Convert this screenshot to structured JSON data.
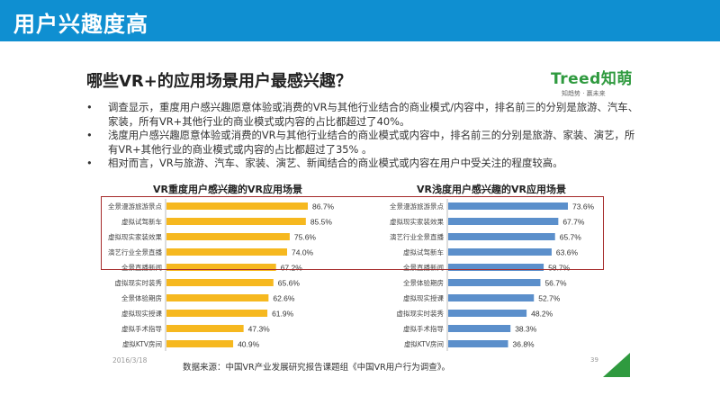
{
  "header": {
    "title": "用户兴趣度高"
  },
  "question": "哪些VR+的应用场景用户最感兴趣？",
  "logo": {
    "name": "Treed知萌",
    "tagline": "知趋势 · 赢未来"
  },
  "bullets": [
    "调查显示，重度用户感兴趣愿意体验或消费的VR与其他行业结合的商业模式/内容中，排名前三的分别是旅游、汽车、家装，所有VR+其他行业的商业模式或内容的占比都超过了40%。",
    "浅度用户感兴趣愿意体验或消费的VR与其他行业结合的商业模式或内容中，排名前三的分别是旅游、家装、演艺，所有VR+其他行业的商业模式或内容的占比都超过了35% 。",
    "相对而言，VR与旅游、汽车、家装、演艺、新闻结合的商业模式或内容在用户中受关注的程度较高。"
  ],
  "bullet_symbol": "•",
  "footer": {
    "date": "2016/3/18",
    "source": "数据来源：中国VR产业发展研究报告课题组《中国VR用户行为调查》。",
    "page": "39"
  },
  "chart_data": [
    {
      "type": "bar",
      "orientation": "horizontal",
      "title": "VR重度用户感兴趣的VR应用场景",
      "color": "#f6b81f",
      "categories": [
        "全景漫游旅游景点",
        "虚拟试驾新车",
        "虚拟现实家装效果",
        "演艺行业全景直播",
        "全景直播新闻",
        "虚拟现实时装秀",
        "全景体验期房",
        "虚拟现实授课",
        "虚拟手术指导",
        "虚拟KTV房间"
      ],
      "values": [
        86.7,
        85.5,
        75.6,
        74.0,
        67.2,
        65.6,
        62.6,
        61.9,
        47.3,
        40.9
      ],
      "labels": [
        "86.7%",
        "85.5%",
        "75.6%",
        "74.0%",
        "67.2%",
        "65.6%",
        "62.6%",
        "61.9%",
        "47.3%",
        "40.9%"
      ],
      "xlim": [
        0,
        100
      ],
      "grid": false,
      "highlighted_top": 5
    },
    {
      "type": "bar",
      "orientation": "horizontal",
      "title": "VR浅度用户感兴趣的VR应用场景",
      "color": "#5b8fcb",
      "categories": [
        "全景漫游旅游景点",
        "虚拟现实家装效果",
        "演艺行业全景直播",
        "虚拟试驾新车",
        "全景直播新闻",
        "全景体验期房",
        "虚拟现实授课",
        "虚拟现实时装秀",
        "虚拟手术指导",
        "虚拟KTV房间"
      ],
      "values": [
        73.6,
        67.7,
        65.7,
        63.6,
        58.7,
        56.7,
        52.7,
        48.2,
        38.3,
        36.8
      ],
      "labels": [
        "73.6%",
        "67.7%",
        "65.7%",
        "63.6%",
        "58.7%",
        "56.7%",
        "52.7%",
        "48.2%",
        "38.3%",
        "36.8%"
      ],
      "xlim": [
        0,
        100
      ],
      "grid": false,
      "highlighted_top": 5
    }
  ]
}
